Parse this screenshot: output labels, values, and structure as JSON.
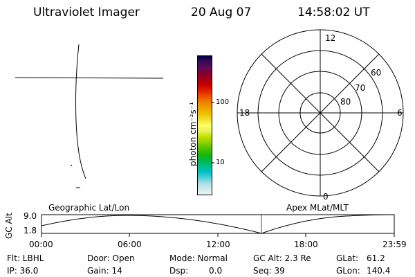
{
  "header": {
    "instrument": "Ultraviolet Imager",
    "date": "20 Aug 07",
    "time": "14:58:02 UT"
  },
  "colorbar": {
    "unit_label": "photon cm⁻²s⁻¹",
    "tick_labels": [
      "100",
      "10"
    ],
    "colors": [
      "#000040",
      "#3a0a5a",
      "#5a0a5a",
      "#800030",
      "#a00018",
      "#c80000",
      "#e02000",
      "#f05000",
      "#f08000",
      "#f0a000",
      "#f0c000",
      "#f0e030",
      "#ffff60",
      "#e8f060",
      "#c0e000",
      "#90d000",
      "#50c000",
      "#20b800",
      "#00b840",
      "#00c080",
      "#00c0c0",
      "#40d0d8",
      "#a0e0e8",
      "#d0e8ec",
      "#eef3f4"
    ]
  },
  "polar": {
    "clock_labels": {
      "top": "12",
      "left": "18",
      "right": "6",
      "bottom": "0"
    },
    "lat_labels": [
      "60",
      "70",
      "80"
    ]
  },
  "timeline": {
    "left_title": "Geographic Lat/Lon",
    "right_title": "Apex MLat/MLT",
    "axis_label": "GC Alt",
    "y_high": "9.0",
    "y_low": "1.8",
    "ticks": [
      "00:00",
      "06:00",
      "12:00",
      "18:00",
      "23:59"
    ],
    "marker_color": "#e00000"
  },
  "info": {
    "filter": "Flt: LBHL",
    "ip": "IP: 36.0",
    "door": "Door: Open",
    "gain": "Gain: 14",
    "mode": "Mode: Normal",
    "dsp_label": "Dsp:",
    "dsp_value": "0.0",
    "gc_alt": "GC Alt: 2.3 Re",
    "seq": "Seq: 39",
    "glat_label": "GLat:",
    "glat_value": "61.2",
    "glon_label": "GLon:",
    "glon_value": "140.4"
  }
}
